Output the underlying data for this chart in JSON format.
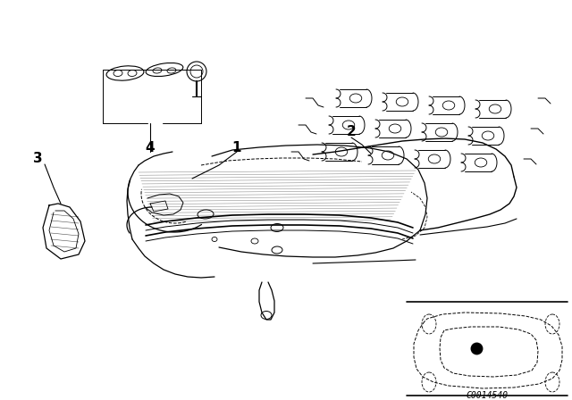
{
  "bg_color": "#ffffff",
  "line_color": "#000000",
  "fig_width": 6.4,
  "fig_height": 4.48,
  "dpi": 100,
  "diagram_code": "C0014540"
}
